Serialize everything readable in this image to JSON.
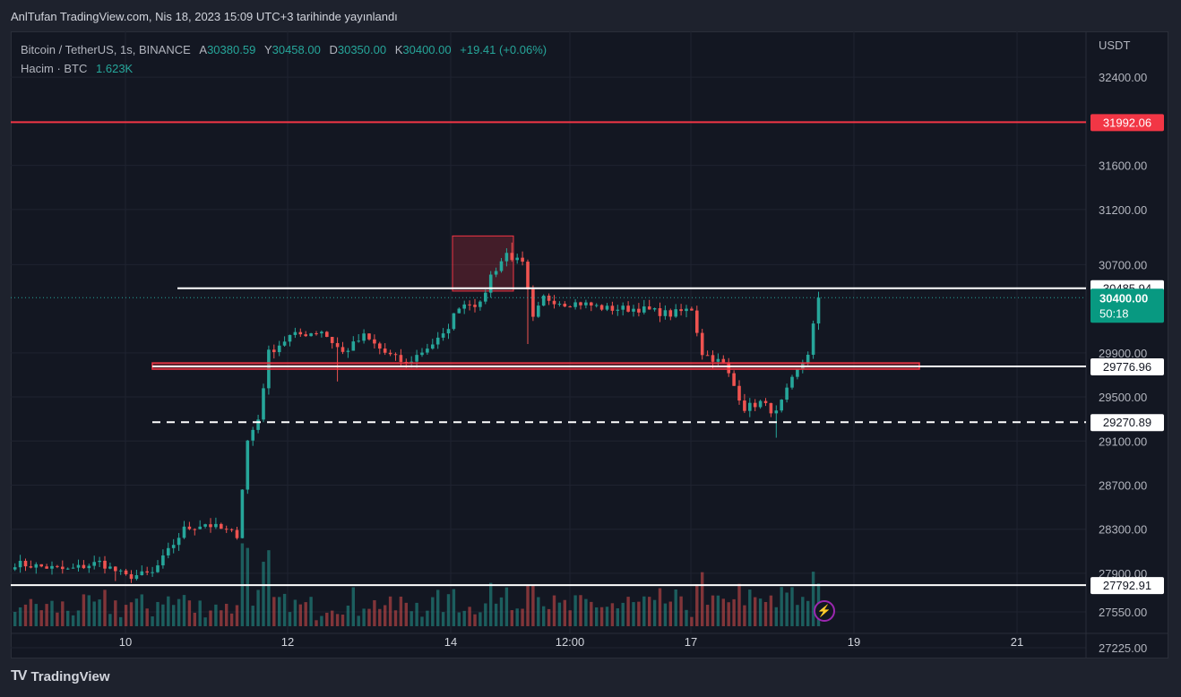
{
  "header": {
    "published": "AnlTufan TradingView.com, Nis 18, 2023 15:09 UTC+3 tarihinde yayınlandı"
  },
  "legend": {
    "symbol": "Bitcoin / TetherUS, 1s, BINANCE",
    "open_label": "A",
    "open": "30380.59",
    "high_label": "Y",
    "high": "30458.00",
    "low_label": "D",
    "low": "30350.00",
    "close_label": "K",
    "close": "30400.00",
    "change": "+19.41 (+0.06%)",
    "volume_label": "Hacim · BTC",
    "volume": "1.623K"
  },
  "footer": {
    "brand": "TradingView"
  },
  "colors": {
    "up": "#26a69a",
    "down": "#ef5350",
    "background": "#131722",
    "grid": "#1f2330",
    "red_level": "#f23645",
    "white_level": "#ffffff"
  },
  "chart_data": {
    "type": "candlestick",
    "currency": "USDT",
    "ylim": [
      27100,
      32800
    ],
    "y_ticks": [
      32400,
      31600,
      31200,
      30700,
      29900,
      29500,
      29100,
      28700,
      28300,
      27900,
      27550,
      27225
    ],
    "x_ticks": [
      "10",
      "12",
      "14",
      "12:00",
      "17",
      "19",
      "21"
    ],
    "horizontal_levels": [
      {
        "price": 31992.06,
        "label": "31992.06",
        "color": "#f23645",
        "style": "solid"
      },
      {
        "price": 30485.94,
        "label": "30485.94",
        "color": "#ffffff",
        "style": "solid"
      },
      {
        "price": 29776.96,
        "label": "29776.96",
        "color": "#ffffff",
        "style": "solid"
      },
      {
        "price": 29270.89,
        "label": "29270.89",
        "color": "#ffffff",
        "style": "dashed"
      },
      {
        "price": 27792.91,
        "label": "27792.91",
        "color": "#ffffff",
        "style": "solid"
      }
    ],
    "support_zone": {
      "from": 29760,
      "to": 29800,
      "color": "#f23645"
    },
    "highlight_box": {
      "from": 30460,
      "to": 30960,
      "color": "#f23645"
    },
    "current_price": {
      "price": 30400.0,
      "label": "30400.00",
      "countdown": "50:18"
    },
    "volume_max_btc": 4.9,
    "close_path": [
      [
        0,
        27990
      ],
      [
        10,
        27930
      ],
      [
        16,
        28000
      ],
      [
        21,
        27870
      ],
      [
        26,
        27900
      ],
      [
        32,
        28300
      ],
      [
        36,
        28350
      ],
      [
        42,
        28250
      ],
      [
        44,
        29100
      ],
      [
        46,
        29300
      ],
      [
        48,
        29900
      ],
      [
        52,
        30050
      ],
      [
        58,
        30100
      ],
      [
        62,
        29900
      ],
      [
        66,
        30050
      ],
      [
        70,
        29900
      ],
      [
        74,
        29800
      ],
      [
        78,
        29950
      ],
      [
        81,
        30050
      ],
      [
        84,
        30330
      ],
      [
        86,
        30360
      ],
      [
        88,
        30330
      ],
      [
        90,
        30600
      ],
      [
        93,
        30800
      ],
      [
        96,
        30700
      ],
      [
        98,
        30200
      ],
      [
        100,
        30400
      ],
      [
        104,
        30350
      ],
      [
        107,
        30350
      ],
      [
        112,
        30300
      ],
      [
        118,
        30300
      ],
      [
        124,
        30250
      ],
      [
        128,
        30300
      ],
      [
        130,
        29900
      ],
      [
        134,
        29800
      ],
      [
        136,
        29600
      ],
      [
        138,
        29400
      ],
      [
        141,
        29450
      ],
      [
        144,
        29350
      ],
      [
        147,
        29650
      ],
      [
        150,
        29900
      ],
      [
        152,
        30400
      ]
    ],
    "high_low_extremes": [
      {
        "x": 94,
        "high": 30900
      },
      {
        "x": 61,
        "low": 29640
      },
      {
        "x": 97,
        "low": 29980
      },
      {
        "x": 144,
        "low": 29130
      },
      {
        "x": 19,
        "low": 27830
      }
    ]
  }
}
